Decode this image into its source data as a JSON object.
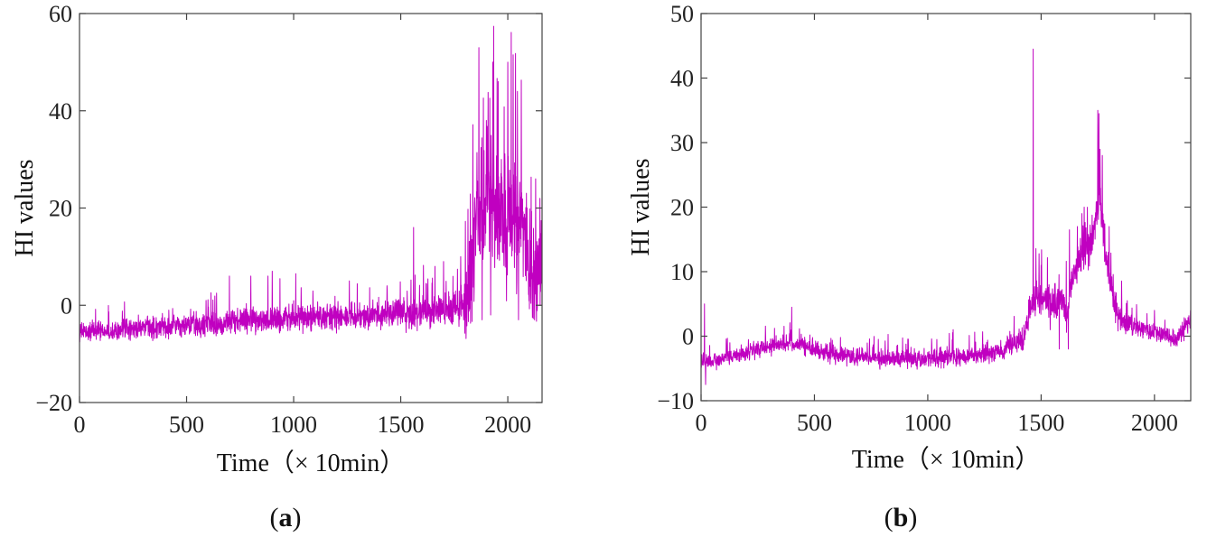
{
  "colors": {
    "series": "#c000c0",
    "axes": "#444444",
    "text": "#222222"
  },
  "chart_data": [
    {
      "type": "line",
      "panel_prefix": "(",
      "panel_letter": "a",
      "panel_suffix": ")",
      "xlabel": "Time（× 10min）",
      "ylabel": "HI values",
      "xlim": [
        0,
        2160
      ],
      "ylim": [
        -20,
        60
      ],
      "xticks": [
        0,
        500,
        1000,
        1500,
        2000
      ],
      "yticks": [
        -20,
        0,
        20,
        40,
        60
      ],
      "ytick_labels": [
        "−20",
        "0",
        "20",
        "40",
        "60"
      ],
      "grid": false,
      "n_points": 2160,
      "keypoints": [
        [
          0,
          -5.5
        ],
        [
          200,
          -5
        ],
        [
          400,
          -4.5
        ],
        [
          600,
          -4
        ],
        [
          800,
          -3
        ],
        [
          1000,
          -2.5
        ],
        [
          1200,
          -2.5
        ],
        [
          1400,
          -2
        ],
        [
          1600,
          -1.5
        ],
        [
          1780,
          -0.5
        ],
        [
          1820,
          2
        ],
        [
          1850,
          20
        ],
        [
          1900,
          20
        ],
        [
          1950,
          17
        ],
        [
          2000,
          17
        ],
        [
          2050,
          17
        ],
        [
          2080,
          14
        ],
        [
          2110,
          8
        ],
        [
          2130,
          5
        ],
        [
          2160,
          9
        ]
      ],
      "noise_amplitude": [
        [
          0,
          2
        ],
        [
          400,
          2.5
        ],
        [
          800,
          3
        ],
        [
          1200,
          3
        ],
        [
          1600,
          3.5
        ],
        [
          1790,
          4
        ],
        [
          1820,
          12
        ],
        [
          2000,
          15
        ],
        [
          2100,
          12
        ],
        [
          2160,
          9
        ]
      ],
      "spikes": [
        [
          640,
          2.5
        ],
        [
          700,
          6
        ],
        [
          800,
          6
        ],
        [
          880,
          6
        ],
        [
          900,
          7
        ],
        [
          1010,
          6.5
        ],
        [
          1260,
          5
        ],
        [
          1560,
          16
        ],
        [
          1660,
          8
        ],
        [
          1700,
          9
        ],
        [
          1780,
          10
        ],
        [
          1865,
          53
        ],
        [
          1880,
          47
        ],
        [
          1900,
          38
        ],
        [
          1930,
          50
        ],
        [
          1955,
          46
        ],
        [
          1970,
          30
        ],
        [
          2000,
          50
        ],
        [
          2025,
          51.5
        ],
        [
          2045,
          44
        ],
        [
          2090,
          20
        ],
        [
          2130,
          26
        ],
        [
          2150,
          22
        ]
      ],
      "dips": [
        [
          1880,
          -3
        ],
        [
          1920,
          -2
        ],
        [
          2050,
          -3
        ],
        [
          2115,
          -2.5
        ],
        [
          2125,
          -3
        ]
      ]
    },
    {
      "type": "line",
      "panel_prefix": "(",
      "panel_letter": "b",
      "panel_suffix": ")",
      "xlabel": "Time（× 10min）",
      "ylabel": "HI values",
      "xlim": [
        0,
        2160
      ],
      "ylim": [
        -10,
        50
      ],
      "xticks": [
        0,
        500,
        1000,
        1500,
        2000
      ],
      "yticks": [
        -10,
        0,
        10,
        20,
        30,
        40,
        50
      ],
      "ytick_labels": [
        "−10",
        "0",
        "10",
        "20",
        "30",
        "40",
        "50"
      ],
      "grid": false,
      "n_points": 2160,
      "keypoints": [
        [
          0,
          -4
        ],
        [
          40,
          -4
        ],
        [
          150,
          -3
        ],
        [
          300,
          -1.5
        ],
        [
          400,
          -1
        ],
        [
          500,
          -2
        ],
        [
          600,
          -3
        ],
        [
          800,
          -3.5
        ],
        [
          1000,
          -3.5
        ],
        [
          1200,
          -3
        ],
        [
          1350,
          -2
        ],
        [
          1420,
          -0.5
        ],
        [
          1450,
          4
        ],
        [
          1480,
          6
        ],
        [
          1530,
          6
        ],
        [
          1600,
          5
        ],
        [
          1615,
          3
        ],
        [
          1625,
          8
        ],
        [
          1680,
          13
        ],
        [
          1720,
          14
        ],
        [
          1760,
          22
        ],
        [
          1790,
          11
        ],
        [
          1840,
          3
        ],
        [
          1900,
          1.5
        ],
        [
          2000,
          0.5
        ],
        [
          2100,
          -0.5
        ],
        [
          2160,
          2.5
        ]
      ],
      "noise_amplitude": [
        [
          0,
          1.2
        ],
        [
          400,
          1.5
        ],
        [
          1000,
          1.5
        ],
        [
          1400,
          1.8
        ],
        [
          1450,
          3
        ],
        [
          1600,
          3
        ],
        [
          1700,
          4
        ],
        [
          1800,
          3
        ],
        [
          1900,
          1.5
        ],
        [
          2160,
          1.5
        ]
      ],
      "spikes": [
        [
          15,
          5
        ],
        [
          400,
          4.5
        ],
        [
          1465,
          44.5
        ],
        [
          1500,
          11
        ],
        [
          1660,
          17
        ],
        [
          1680,
          19
        ],
        [
          1690,
          20
        ],
        [
          1750,
          35
        ],
        [
          1755,
          34.5
        ],
        [
          1770,
          28
        ],
        [
          1800,
          17
        ],
        [
          1880,
          5.5
        ],
        [
          2000,
          4
        ],
        [
          2160,
          4
        ]
      ],
      "dips": [
        [
          20,
          -7.5
        ],
        [
          1540,
          1
        ],
        [
          1580,
          -2
        ],
        [
          1620,
          -2
        ],
        [
          2100,
          -1.5
        ]
      ]
    }
  ]
}
